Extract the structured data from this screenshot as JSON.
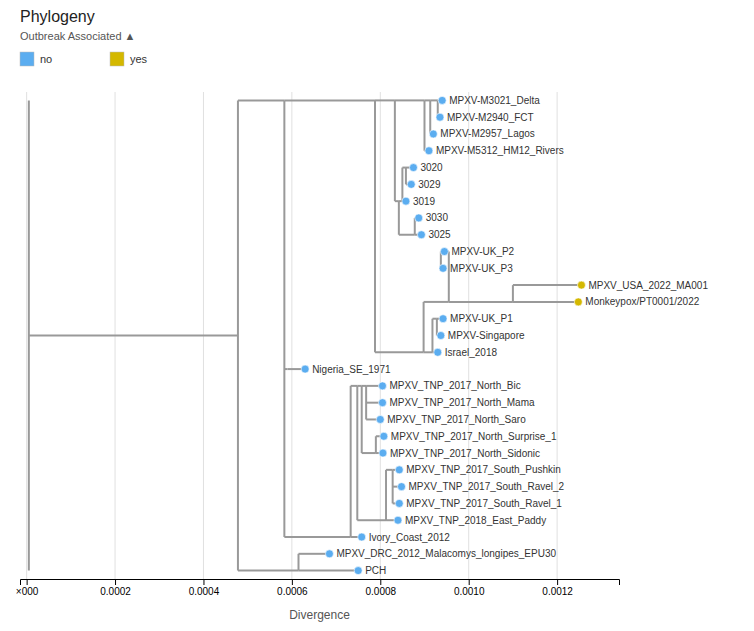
{
  "chart_data": {
    "type": "tree",
    "title": "Phylogeny",
    "subtitle": "Outbreak Associated ▲",
    "xlabel": "Divergence",
    "xlim": [
      -1.5e-05,
      0.00134
    ],
    "xticks": [
      {
        "value": 0,
        "label": "×000"
      },
      0.0002,
      0.0004,
      0.0006,
      0.0008,
      {
        "value": 0.001,
        "label": "0.0010"
      },
      0.0012
    ],
    "grid": true,
    "legend": "top",
    "categories": [
      "MPXV-M3021_Delta",
      "MPXV-M2940_FCT",
      "MPXV-M2957_Lagos",
      "MPXV-M5312_HM12_Rivers",
      "3020",
      "3029",
      "3019",
      "3030",
      "3025",
      "MPXV-UK_P2",
      "MPXV-UK_P3",
      "MPXV_USA_2022_MA001",
      "Monkeypox/PT0001/2022",
      "MPXV-UK_P1",
      "MPXV-Singapore",
      "Israel_2018",
      "Nigeria_SE_1971",
      "MPXV_TNP_2017_North_Bic",
      "MPXV_TNP_2017_North_Mama",
      "MPXV_TNP_2017_North_Saro",
      "MPXV_TNP_2017_North_Surprise_1",
      "MPXV_TNP_2017_North_Sidonic",
      "MPXV_TNP_2017_South_Pushkin",
      "MPXV_TNP_2017_South_Ravel_2",
      "MPXV_TNP_2017_South_Ravel_1",
      "MPXV_TNP_2018_East_Paddy",
      "Ivory_Coast_2012",
      "MPXV_DRC_2012_Malacomys_longipes_EPU30",
      "PCH"
    ],
    "series": [
      {
        "name": "no",
        "color": "#5badf0",
        "values": [
          0.00094,
          0.000935,
          0.00092,
          0.00091,
          0.000875,
          0.00087,
          0.000858,
          0.000887,
          0.000893,
          0.000945,
          0.000942,
          null,
          null,
          0.000942,
          0.000937,
          0.00093,
          0.00063,
          0.000805,
          0.000805,
          0.0008,
          0.000808,
          0.000806,
          0.000843,
          0.000848,
          0.000843,
          0.00084,
          0.000758,
          0.000685,
          0.00075
        ]
      },
      {
        "name": "yes",
        "color": "#d4b800",
        "values": [
          null,
          null,
          null,
          null,
          null,
          null,
          null,
          null,
          null,
          null,
          null,
          0.001255,
          0.001248,
          null,
          null,
          null,
          null,
          null,
          null,
          null,
          null,
          null,
          null,
          null,
          null,
          null,
          null,
          null,
          null
        ]
      }
    ],
    "tree": {
      "x": 5e-06,
      "children": [
        {
          "x": 0.000478,
          "children": [
            {
              "x": 0.000583,
              "children": [
                {
                  "x": 0.000788,
                  "children": [
                    {
                      "x": 0.000833,
                      "children": [
                        {
                          "x": 0.0009,
                          "children": [
                            {
                              "x": 0.000913,
                              "children": [
                                {
                                  "x": 0.00093,
                                  "children": [
                                    "MPXV-M3021_Delta",
                                    "MPXV-M2940_FCT"
                                  ]
                                },
                                "MPXV-M2957_Lagos"
                              ]
                            },
                            "MPXV-M5312_HM12_Rivers"
                          ]
                        },
                        {
                          "x": 0.000842,
                          "children": [
                            {
                              "x": 0.00085,
                              "children": [
                                "3019",
                                {
                                  "x": 0.000858,
                                  "children": [
                                    "3020",
                                    "3029"
                                  ]
                                }
                              ]
                            },
                            {
                              "x": 0.000878,
                              "children": [
                                "3025",
                                "3030"
                              ]
                            }
                          ]
                        }
                      ]
                    },
                    {
                      "x": 0.000898,
                      "children": [
                        {
                          "x": 0.000918,
                          "children": [
                            "Israel_2018",
                            {
                              "x": 0.000928,
                              "children": [
                                "MPXV-UK_P1",
                                "MPXV-Singapore"
                              ]
                            }
                          ]
                        },
                        {
                          "x": 0.000955,
                          "children": [
                            {
                              "x": 0.0011,
                              "children": [
                                "Monkeypox/PT0001/2022",
                                "MPXV_USA_2022_MA001"
                              ]
                            },
                            {
                              "x": 0.000937,
                              "children": [
                                "MPXV-UK_P2",
                                "MPXV-UK_P3"
                              ]
                            }
                          ]
                        }
                      ]
                    }
                  ]
                },
                {
                  "x": 0.00059,
                  "children": [
                    "Nigeria_SE_1971"
                  ]
                },
                {
                  "x": 0.000733,
                  "children": [
                    "Ivory_Coast_2012",
                    {
                      "x": 0.000748,
                      "children": [
                        {
                          "x": 0.000758,
                          "children": [
                            {
                              "x": 0.000768,
                              "children": [
                                "MPXV_TNP_2017_North_Bic",
                                "MPXV_TNP_2017_North_Mama",
                                "MPXV_TNP_2017_North_Saro"
                              ]
                            },
                            {
                              "x": 0.00079,
                              "children": [
                                "MPXV_TNP_2017_North_Sidonic",
                                "MPXV_TNP_2017_North_Surprise_1"
                              ]
                            }
                          ]
                        },
                        {
                          "x": 0.000813,
                          "children": [
                            "MPXV_TNP_2018_East_Paddy",
                            {
                              "x": 0.000828,
                              "children": [
                                "MPXV_TNP_2017_South_Pushkin",
                                "MPXV_TNP_2017_South_Ravel_2",
                                "MPXV_TNP_2017_South_Ravel_1"
                              ]
                            }
                          ]
                        }
                      ]
                    }
                  ]
                }
              ]
            },
            {
              "x": 0.000615,
              "children": [
                "PCH",
                "MPXV_DRC_2012_Malacomys_longipes_EPU30"
              ]
            }
          ]
        }
      ]
    }
  }
}
